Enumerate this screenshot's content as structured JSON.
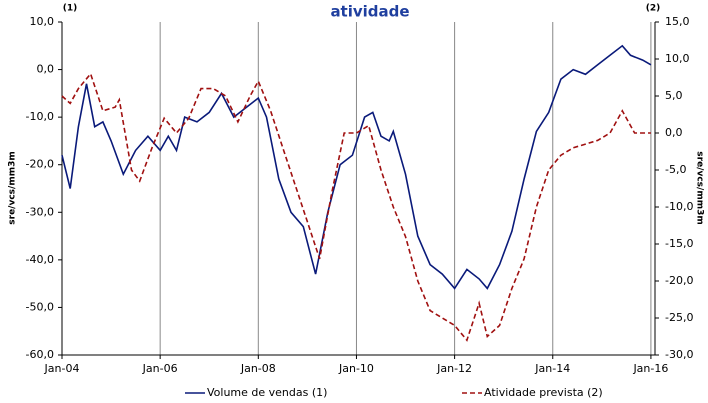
{
  "chart_data": {
    "type": "line",
    "title": "atividade",
    "left_note": "(1)",
    "right_note": "(2)",
    "ylabel": "sre/vcs/mm3m",
    "y2label": "sre/vcs/mm3m",
    "xlim": [
      "2004-01",
      "2016-02"
    ],
    "xticks": [
      {
        "value": "2004-01",
        "label": "Jan-04"
      },
      {
        "value": "2006-01",
        "label": "Jan-06"
      },
      {
        "value": "2008-01",
        "label": "Jan-08"
      },
      {
        "value": "2010-01",
        "label": "Jan-10"
      },
      {
        "value": "2012-01",
        "label": "Jan-12"
      },
      {
        "value": "2014-01",
        "label": "Jan-14"
      },
      {
        "value": "2016-01",
        "label": "Jan-16"
      }
    ],
    "xgrid": true,
    "ylim": [
      -60,
      10
    ],
    "yticks": [
      {
        "value": -60,
        "label": "-60,0"
      },
      {
        "value": -50,
        "label": "-50,0"
      },
      {
        "value": -40,
        "label": "-40,0"
      },
      {
        "value": -30,
        "label": "-30,0"
      },
      {
        "value": -20,
        "label": "-20,0"
      },
      {
        "value": -10,
        "label": "-10,0"
      },
      {
        "value": 0,
        "label": "0,0"
      },
      {
        "value": 10,
        "label": "10,0"
      }
    ],
    "y2lim": [
      -30,
      15
    ],
    "y2ticks": [
      {
        "value": -30,
        "label": "-30,0"
      },
      {
        "value": -25,
        "label": "-25,0"
      },
      {
        "value": -20,
        "label": "-20,0"
      },
      {
        "value": -15,
        "label": "-15,0"
      },
      {
        "value": -10,
        "label": "-10,0"
      },
      {
        "value": -5,
        "label": "-5,0"
      },
      {
        "value": 0,
        "label": "0,0"
      },
      {
        "value": 5,
        "label": "5,0"
      },
      {
        "value": 10,
        "label": "10,0"
      },
      {
        "value": 15,
        "label": "15,0"
      }
    ],
    "series": [
      {
        "name": "Volume de vendas (1)",
        "color": "#0a1a7a",
        "dash": false,
        "x": [
          "2004-01",
          "2004-03",
          "2004-05",
          "2004-07",
          "2004-09",
          "2004-11",
          "2005-01",
          "2005-04",
          "2005-07",
          "2005-10",
          "2006-01",
          "2006-03",
          "2006-05",
          "2006-07",
          "2006-10",
          "2007-01",
          "2007-04",
          "2007-07",
          "2007-10",
          "2008-01",
          "2008-03",
          "2008-06",
          "2008-09",
          "2008-12",
          "2009-03",
          "2009-06",
          "2009-09",
          "2009-12",
          "2010-03",
          "2010-05",
          "2010-07",
          "2010-09",
          "2010-10",
          "2011-01",
          "2011-04",
          "2011-07",
          "2011-10",
          "2012-01",
          "2012-04",
          "2012-07",
          "2012-09",
          "2012-12",
          "2013-03",
          "2013-06",
          "2013-09",
          "2013-12",
          "2014-03",
          "2014-06",
          "2014-09",
          "2014-12",
          "2015-03",
          "2015-06",
          "2015-08",
          "2015-11",
          "2016-01"
        ],
        "values": [
          -18,
          -25,
          -12,
          -3,
          -12,
          -11,
          -15,
          -22,
          -17,
          -14,
          -17,
          -14,
          -17,
          -10,
          -11,
          -9,
          -5,
          -10,
          -8,
          -6,
          -10,
          -23,
          -30,
          -33,
          -43,
          -30,
          -20,
          -18,
          -10,
          -9,
          -14,
          -15,
          -13,
          -22,
          -35,
          -41,
          -43,
          -46,
          -42,
          -44,
          -46,
          -41,
          -34,
          -23,
          -13,
          -9,
          -2,
          0,
          -1,
          1,
          3,
          5,
          3,
          2,
          1
        ]
      },
      {
        "name": "Atividade prevista (2)",
        "color": "#a01010",
        "dash": true,
        "axis": "y2",
        "x": [
          "2004-01",
          "2004-03",
          "2004-05",
          "2004-08",
          "2004-11",
          "2005-02",
          "2005-03",
          "2005-06",
          "2005-08",
          "2005-11",
          "2006-02",
          "2006-05",
          "2006-08",
          "2006-11",
          "2007-02",
          "2007-05",
          "2007-08",
          "2007-11",
          "2008-01",
          "2008-04",
          "2008-07",
          "2008-10",
          "2009-01",
          "2009-04",
          "2009-07",
          "2009-10",
          "2010-01",
          "2010-04",
          "2010-07",
          "2010-10",
          "2011-01",
          "2011-04",
          "2011-07",
          "2011-10",
          "2012-01",
          "2012-04",
          "2012-07",
          "2012-09",
          "2012-12",
          "2013-03",
          "2013-06",
          "2013-09",
          "2013-12",
          "2014-03",
          "2014-06",
          "2014-09",
          "2014-12",
          "2015-03",
          "2015-06",
          "2015-09",
          "2016-01"
        ],
        "values": [
          5,
          4,
          6,
          8,
          3,
          3.5,
          4.5,
          -5,
          -6.5,
          -2,
          2,
          0,
          2,
          6,
          6,
          5,
          1.5,
          5,
          7,
          3,
          -2,
          -7,
          -12,
          -17,
          -8,
          0,
          0,
          1,
          -5,
          -10,
          -14,
          -20,
          -24,
          -25,
          -26,
          -28,
          -23,
          -27.5,
          -26,
          -21,
          -17,
          -10,
          -5,
          -3,
          -2,
          -1.5,
          -1,
          0,
          3,
          0,
          0
        ]
      }
    ]
  }
}
